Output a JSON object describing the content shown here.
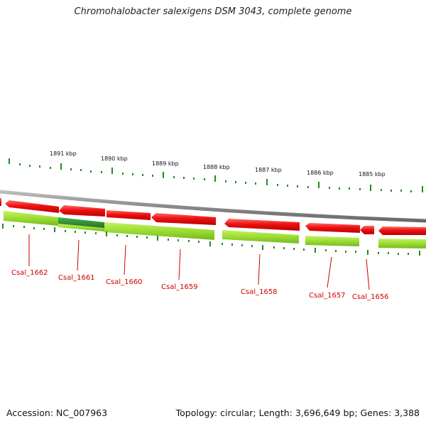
{
  "title": "Chromohalobacter salexigens DSM 3043, complete genome",
  "footer": {
    "accession": "Accession: NC_007963",
    "summary": "Topology: circular; Length: 3,696,649 bp; Genes: 3,388"
  },
  "colors": {
    "forward_gene": "#ee1111",
    "reverse_gene": "#99dd33",
    "highlight_gene": "#2f8a2f",
    "backbone": "#888888",
    "tick": "#1f8a1f",
    "label": "#cc0000"
  },
  "scale_labels": [
    "1891 kbp",
    "1890 kbp",
    "1889 kbp",
    "1888 kbp",
    "1887 kbp",
    "1886 kbp",
    "1885 kbp"
  ],
  "gene_labels": [
    "Csal_1662",
    "Csal_1661",
    "Csal_1660",
    "Csal_1659",
    "Csal_1658",
    "Csal_1657",
    "Csal_1656"
  ]
}
